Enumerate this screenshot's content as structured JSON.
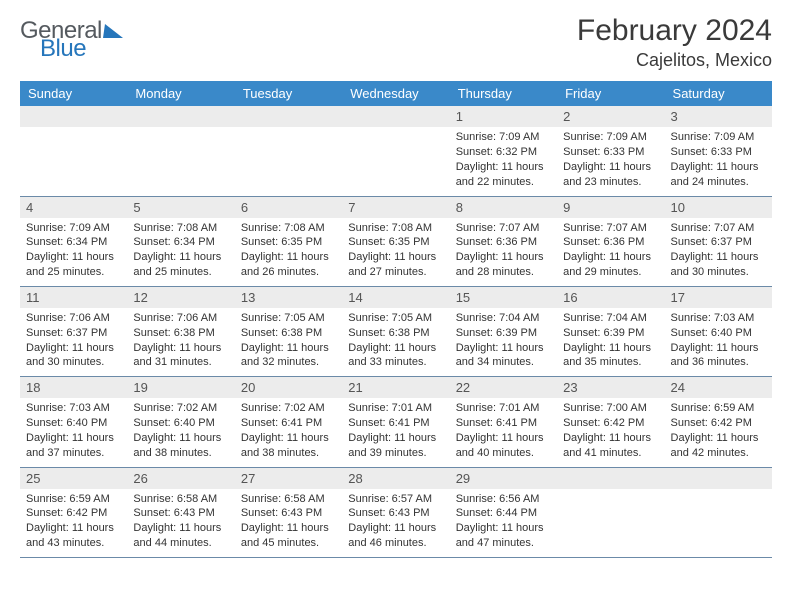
{
  "logo": {
    "word1": "General",
    "word2": "Blue"
  },
  "title": "February 2024",
  "location": "Cajelitos, Mexico",
  "colors": {
    "header_bg": "#3a89c9",
    "header_text": "#ffffff",
    "daynum_bg": "#ececec",
    "row_border": "#6b8aa8",
    "logo_gray": "#555a5f",
    "logo_blue": "#2676bb"
  },
  "typography": {
    "title_size_pt": 22,
    "location_size_pt": 14,
    "weekday_size_pt": 10,
    "body_size_pt": 8
  },
  "weekdays": [
    "Sunday",
    "Monday",
    "Tuesday",
    "Wednesday",
    "Thursday",
    "Friday",
    "Saturday"
  ],
  "first_weekday_index": 4,
  "days_in_month": 29,
  "days": {
    "1": {
      "sunrise": "7:09 AM",
      "sunset": "6:32 PM",
      "daylight": "11 hours and 22 minutes."
    },
    "2": {
      "sunrise": "7:09 AM",
      "sunset": "6:33 PM",
      "daylight": "11 hours and 23 minutes."
    },
    "3": {
      "sunrise": "7:09 AM",
      "sunset": "6:33 PM",
      "daylight": "11 hours and 24 minutes."
    },
    "4": {
      "sunrise": "7:09 AM",
      "sunset": "6:34 PM",
      "daylight": "11 hours and 25 minutes."
    },
    "5": {
      "sunrise": "7:08 AM",
      "sunset": "6:34 PM",
      "daylight": "11 hours and 25 minutes."
    },
    "6": {
      "sunrise": "7:08 AM",
      "sunset": "6:35 PM",
      "daylight": "11 hours and 26 minutes."
    },
    "7": {
      "sunrise": "7:08 AM",
      "sunset": "6:35 PM",
      "daylight": "11 hours and 27 minutes."
    },
    "8": {
      "sunrise": "7:07 AM",
      "sunset": "6:36 PM",
      "daylight": "11 hours and 28 minutes."
    },
    "9": {
      "sunrise": "7:07 AM",
      "sunset": "6:36 PM",
      "daylight": "11 hours and 29 minutes."
    },
    "10": {
      "sunrise": "7:07 AM",
      "sunset": "6:37 PM",
      "daylight": "11 hours and 30 minutes."
    },
    "11": {
      "sunrise": "7:06 AM",
      "sunset": "6:37 PM",
      "daylight": "11 hours and 30 minutes."
    },
    "12": {
      "sunrise": "7:06 AM",
      "sunset": "6:38 PM",
      "daylight": "11 hours and 31 minutes."
    },
    "13": {
      "sunrise": "7:05 AM",
      "sunset": "6:38 PM",
      "daylight": "11 hours and 32 minutes."
    },
    "14": {
      "sunrise": "7:05 AM",
      "sunset": "6:38 PM",
      "daylight": "11 hours and 33 minutes."
    },
    "15": {
      "sunrise": "7:04 AM",
      "sunset": "6:39 PM",
      "daylight": "11 hours and 34 minutes."
    },
    "16": {
      "sunrise": "7:04 AM",
      "sunset": "6:39 PM",
      "daylight": "11 hours and 35 minutes."
    },
    "17": {
      "sunrise": "7:03 AM",
      "sunset": "6:40 PM",
      "daylight": "11 hours and 36 minutes."
    },
    "18": {
      "sunrise": "7:03 AM",
      "sunset": "6:40 PM",
      "daylight": "11 hours and 37 minutes."
    },
    "19": {
      "sunrise": "7:02 AM",
      "sunset": "6:40 PM",
      "daylight": "11 hours and 38 minutes."
    },
    "20": {
      "sunrise": "7:02 AM",
      "sunset": "6:41 PM",
      "daylight": "11 hours and 38 minutes."
    },
    "21": {
      "sunrise": "7:01 AM",
      "sunset": "6:41 PM",
      "daylight": "11 hours and 39 minutes."
    },
    "22": {
      "sunrise": "7:01 AM",
      "sunset": "6:41 PM",
      "daylight": "11 hours and 40 minutes."
    },
    "23": {
      "sunrise": "7:00 AM",
      "sunset": "6:42 PM",
      "daylight": "11 hours and 41 minutes."
    },
    "24": {
      "sunrise": "6:59 AM",
      "sunset": "6:42 PM",
      "daylight": "11 hours and 42 minutes."
    },
    "25": {
      "sunrise": "6:59 AM",
      "sunset": "6:42 PM",
      "daylight": "11 hours and 43 minutes."
    },
    "26": {
      "sunrise": "6:58 AM",
      "sunset": "6:43 PM",
      "daylight": "11 hours and 44 minutes."
    },
    "27": {
      "sunrise": "6:58 AM",
      "sunset": "6:43 PM",
      "daylight": "11 hours and 45 minutes."
    },
    "28": {
      "sunrise": "6:57 AM",
      "sunset": "6:43 PM",
      "daylight": "11 hours and 46 minutes."
    },
    "29": {
      "sunrise": "6:56 AM",
      "sunset": "6:44 PM",
      "daylight": "11 hours and 47 minutes."
    }
  },
  "labels": {
    "sunrise": "Sunrise:",
    "sunset": "Sunset:",
    "daylight": "Daylight:"
  }
}
